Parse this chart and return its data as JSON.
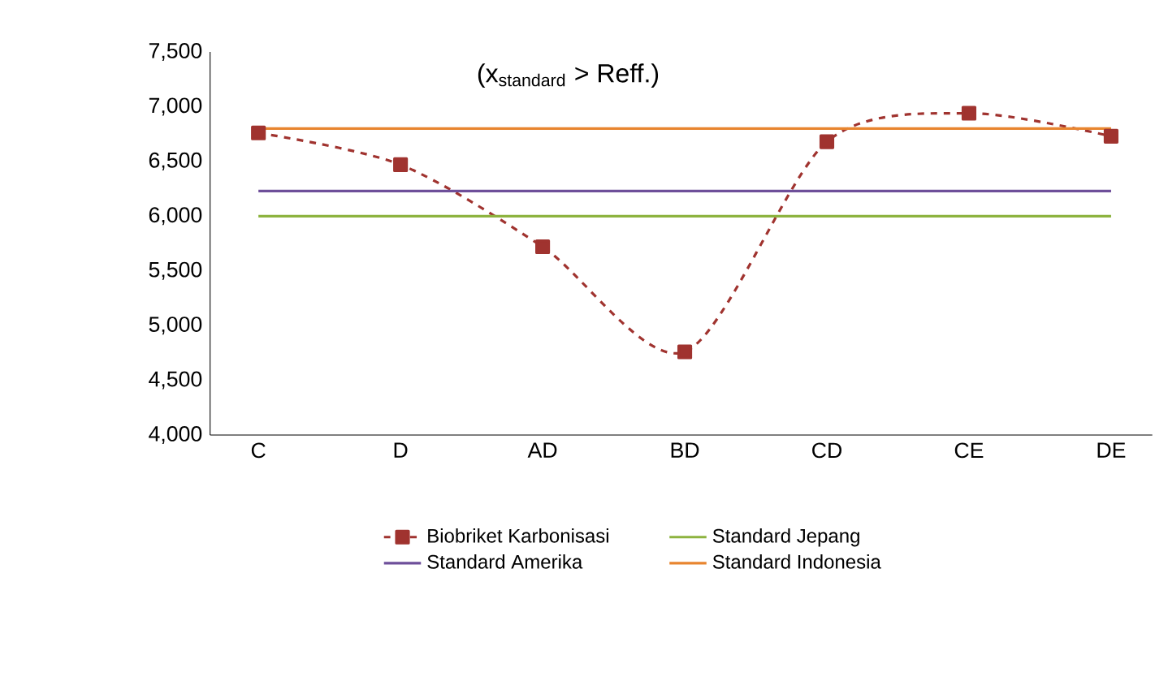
{
  "chart_data": {
    "type": "line",
    "categories": [
      "C",
      "D",
      "AD",
      "BD",
      "CD",
      "CE",
      "DE"
    ],
    "series": [
      {
        "name": "Biobriket Karbonisasi",
        "color": "#a0332f",
        "values": [
          6760,
          6470,
          5720,
          4760,
          6680,
          6940,
          6730
        ],
        "marker": "square",
        "line_style": "dashed"
      },
      {
        "name": "Standard Jepang",
        "color": "#8db33f",
        "values": [
          6000,
          6000,
          6000,
          6000,
          6000,
          6000,
          6000
        ],
        "marker": "none",
        "line_style": "solid"
      },
      {
        "name": "Standard Amerika",
        "color": "#6e4f9a",
        "values": [
          6230,
          6230,
          6230,
          6230,
          6230,
          6230,
          6230
        ],
        "marker": "none",
        "line_style": "solid"
      },
      {
        "name": "Standard Indonesia",
        "color": "#e8852f",
        "values": [
          6800,
          6800,
          6800,
          6800,
          6800,
          6800,
          6800
        ],
        "marker": "none",
        "line_style": "solid"
      }
    ],
    "ylim": [
      4000,
      7500
    ],
    "yticks": [
      {
        "value": 4000,
        "label": "4,000"
      },
      {
        "value": 4500,
        "label": "4,500"
      },
      {
        "value": 5000,
        "label": "5,000"
      },
      {
        "value": 5500,
        "label": "5,500"
      },
      {
        "value": 6000,
        "label": "6,000"
      },
      {
        "value": 6500,
        "label": "6,500"
      },
      {
        "value": 7000,
        "label": "7,000"
      },
      {
        "value": 7500,
        "label": "7,500"
      }
    ],
    "annotations": [
      "(x$_{standard}$ >  Reff.)"
    ],
    "legend": "bottom",
    "grid": false
  }
}
